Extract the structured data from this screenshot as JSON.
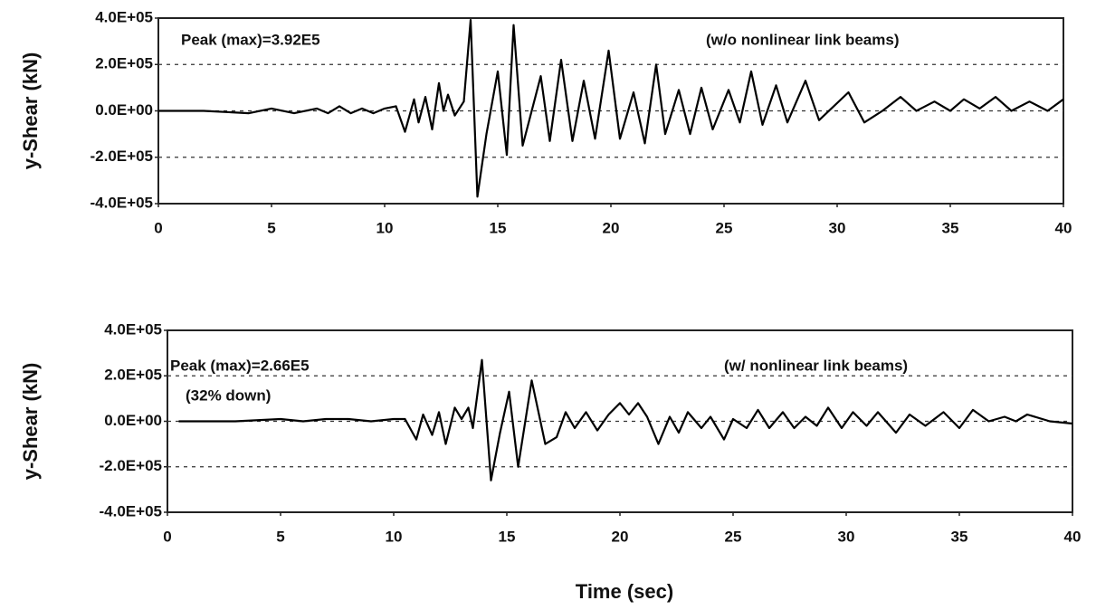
{
  "chart_data": [
    {
      "type": "line",
      "y_label": "y-Shear (kN)",
      "annotations": [
        "Peak (max)=3.92E5",
        "(w/o nonlinear link beams)"
      ],
      "color": "#000000",
      "x": [
        0,
        2,
        4,
        5,
        6,
        7,
        7.5,
        8,
        8.5,
        9,
        9.5,
        10,
        10.5,
        10.9,
        11.3,
        11.5,
        11.8,
        12.1,
        12.4,
        12.6,
        12.8,
        13.1,
        13.5,
        13.8,
        14.1,
        14.5,
        15,
        15.4,
        15.7,
        16.1,
        16.9,
        17.3,
        17.8,
        18.3,
        18.8,
        19.3,
        19.9,
        20.4,
        21,
        21.5,
        22,
        22.4,
        23,
        23.5,
        24,
        24.5,
        25.2,
        25.7,
        26.2,
        26.7,
        27.3,
        27.8,
        28.6,
        29.2,
        30.5,
        31.2,
        32,
        32.8,
        33.5,
        34.3,
        35,
        35.6,
        36.3,
        37,
        37.7,
        38.5,
        39.3,
        40
      ],
      "values": [
        0,
        0,
        -10000,
        10000,
        -10000,
        10000,
        -10000,
        20000,
        -10000,
        10000,
        -10000,
        10000,
        20000,
        -90000,
        50000,
        -50000,
        60000,
        -80000,
        120000,
        0,
        70000,
        -20000,
        40000,
        392000,
        -370000,
        -100000,
        170000,
        -190000,
        370000,
        -150000,
        150000,
        -130000,
        220000,
        -130000,
        130000,
        -120000,
        260000,
        -120000,
        80000,
        -140000,
        200000,
        -100000,
        90000,
        -100000,
        100000,
        -80000,
        90000,
        -50000,
        170000,
        -60000,
        110000,
        -50000,
        130000,
        -40000,
        80000,
        -50000,
        0,
        60000,
        0,
        40000,
        0,
        50000,
        10000,
        60000,
        0,
        40000,
        0,
        50000
      ],
      "xlim": [
        0,
        40
      ],
      "xticks": [
        0,
        5,
        10,
        15,
        20,
        25,
        30,
        35,
        40
      ],
      "ylim": [
        -400000,
        400000
      ],
      "yticks": [
        {
          "value": -400000,
          "label": "-4.0E+05"
        },
        {
          "value": -200000,
          "label": "-2.0E+05"
        },
        {
          "value": 0,
          "label": "0.0E+00"
        },
        {
          "value": 200000,
          "label": "2.0E+05"
        },
        {
          "value": 400000,
          "label": "4.0E+05"
        }
      ],
      "grid": true
    },
    {
      "type": "line",
      "y_label": "y-Shear (kN)",
      "x_label": "Time (sec)",
      "annotations": [
        "Peak (max)=2.66E5",
        "(32% down)",
        "(w/ nonlinear link beams)"
      ],
      "color": "#000000",
      "x": [
        0.5,
        3,
        5,
        6,
        7,
        8,
        9,
        10,
        10.5,
        11,
        11.3,
        11.7,
        12,
        12.3,
        12.7,
        13,
        13.3,
        13.5,
        13.9,
        14.3,
        14.7,
        15.1,
        15.5,
        16.1,
        16.7,
        17.2,
        17.6,
        18,
        18.5,
        19,
        19.5,
        20,
        20.4,
        20.8,
        21.2,
        21.7,
        22.2,
        22.6,
        23,
        23.6,
        24,
        24.6,
        25,
        25.6,
        26.1,
        26.6,
        27.2,
        27.7,
        28.2,
        28.7,
        29.2,
        29.8,
        30.3,
        30.9,
        31.4,
        32.2,
        32.8,
        33.5,
        34.3,
        35,
        35.6,
        36.3,
        37,
        37.5,
        38,
        39,
        40
      ],
      "values": [
        0,
        0,
        10000,
        0,
        10000,
        10000,
        0,
        10000,
        10000,
        -80000,
        30000,
        -60000,
        40000,
        -100000,
        60000,
        10000,
        60000,
        -30000,
        270000,
        -260000,
        -50000,
        130000,
        -200000,
        180000,
        -100000,
        -70000,
        40000,
        -30000,
        40000,
        -40000,
        30000,
        80000,
        30000,
        80000,
        20000,
        -100000,
        20000,
        -50000,
        40000,
        -30000,
        20000,
        -80000,
        10000,
        -30000,
        50000,
        -30000,
        40000,
        -30000,
        20000,
        -20000,
        60000,
        -30000,
        40000,
        -20000,
        40000,
        -50000,
        30000,
        -20000,
        40000,
        -30000,
        50000,
        0,
        20000,
        0,
        30000,
        0,
        -10000
      ],
      "xlim": [
        0,
        40
      ],
      "xticks": [
        0,
        5,
        10,
        15,
        20,
        25,
        30,
        35,
        40
      ],
      "ylim": [
        -400000,
        400000
      ],
      "yticks": [
        {
          "value": -400000,
          "label": "-4.0E+05"
        },
        {
          "value": -200000,
          "label": "-2.0E+05"
        },
        {
          "value": 0,
          "label": "0.0E+00"
        },
        {
          "value": 200000,
          "label": "2.0E+05"
        },
        {
          "value": 400000,
          "label": "4.0E+05"
        }
      ],
      "grid": true
    }
  ]
}
